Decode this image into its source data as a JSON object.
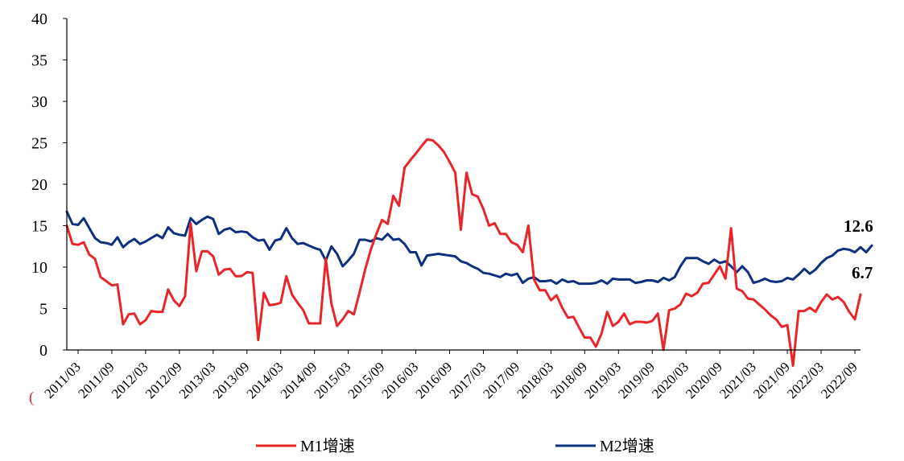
{
  "chart_data": {
    "type": "line",
    "title": "",
    "xlabel": "",
    "ylabel": "",
    "ylim": [
      0,
      40
    ],
    "yticks": [
      "0",
      "5",
      "10",
      "15",
      "20",
      "25",
      "30",
      "35",
      "40"
    ],
    "xticks": [
      "2011/03",
      "2011/09",
      "2012/03",
      "2012/09",
      "2013/03",
      "2013/09",
      "2014/03",
      "2014/09",
      "2015/03",
      "2015/09",
      "2016/03",
      "2016/09",
      "2017/03",
      "2017/09",
      "2018/03",
      "2018/09",
      "2019/03",
      "2019/09",
      "2020/03",
      "2020/09",
      "2021/03",
      "2021/09",
      "2022/03",
      "2022/09"
    ],
    "x_start": "2011/01",
    "x_end": "2022/12",
    "grid": false,
    "legend_position": "bottom",
    "stray_mark": "(",
    "series": [
      {
        "name": "M1增速",
        "color": "#e8262a",
        "end_label": "6.7",
        "values": [
          15.0,
          12.8,
          12.7,
          13.0,
          11.5,
          11.0,
          8.8,
          8.3,
          7.8,
          7.9,
          3.1,
          4.3,
          4.4,
          3.1,
          3.6,
          4.7,
          4.6,
          4.6,
          7.3,
          6.0,
          5.3,
          6.5,
          15.3,
          9.5,
          11.9,
          11.9,
          11.3,
          9.1,
          9.7,
          9.8,
          8.9,
          8.9,
          9.4,
          9.3,
          1.2,
          6.9,
          5.4,
          5.5,
          5.7,
          8.9,
          6.7,
          5.7,
          4.8,
          3.2,
          3.2,
          3.2,
          11.0,
          5.6,
          2.9,
          3.7,
          4.7,
          4.3,
          6.9,
          9.7,
          12.1,
          14.0,
          15.7,
          15.2,
          18.6,
          17.4,
          22.0,
          22.9,
          23.7,
          24.6,
          25.4,
          25.3,
          24.7,
          23.9,
          22.7,
          21.4,
          14.5,
          21.4,
          18.8,
          18.5,
          17.0,
          15.0,
          15.3,
          14.0,
          14.0,
          13.0,
          12.7,
          11.8,
          15.0,
          8.5,
          7.2,
          7.2,
          6.0,
          6.6,
          5.1,
          3.9,
          4.0,
          2.7,
          1.5,
          1.5,
          0.4,
          2.0,
          4.6,
          2.9,
          3.4,
          4.4,
          3.1,
          3.4,
          3.4,
          3.3,
          3.5,
          4.4,
          0.0,
          4.8,
          5.0,
          5.5,
          6.8,
          6.5,
          6.9,
          8.0,
          8.1,
          9.1,
          10.1,
          8.6,
          14.7,
          7.4,
          7.1,
          6.2,
          6.1,
          5.5,
          4.9,
          4.2,
          3.7,
          2.8,
          3.0,
          -1.9,
          4.7,
          4.7,
          5.1,
          4.6,
          5.8,
          6.7,
          6.1,
          6.4,
          5.8,
          4.6,
          3.7,
          6.7
        ]
      },
      {
        "name": "M2增速",
        "color": "#0f2f7f",
        "end_label": "12.6",
        "values": [
          16.7,
          15.2,
          15.1,
          15.9,
          14.7,
          13.5,
          13.0,
          12.9,
          12.7,
          13.6,
          12.4,
          13.0,
          13.4,
          12.8,
          13.1,
          13.5,
          13.9,
          13.5,
          14.8,
          14.1,
          13.9,
          13.8,
          15.9,
          15.2,
          15.7,
          16.1,
          15.8,
          14.0,
          14.5,
          14.7,
          14.2,
          14.3,
          14.2,
          13.6,
          13.2,
          13.3,
          12.1,
          13.2,
          13.4,
          14.7,
          13.5,
          12.8,
          12.9,
          12.6,
          12.3,
          12.1,
          10.8,
          12.5,
          11.6,
          10.1,
          10.8,
          11.6,
          13.3,
          13.3,
          13.1,
          13.5,
          13.3,
          14.0,
          13.3,
          13.4,
          12.8,
          11.8,
          11.8,
          10.2,
          11.4,
          11.5,
          11.6,
          11.5,
          11.4,
          11.3,
          10.7,
          10.5,
          10.1,
          9.8,
          9.3,
          9.2,
          9.0,
          8.8,
          9.2,
          9.0,
          9.2,
          8.1,
          8.6,
          8.8,
          8.3,
          8.3,
          8.4,
          8.0,
          8.5,
          8.2,
          8.3,
          8.0,
          8.0,
          8.0,
          8.1,
          8.4,
          8.0,
          8.6,
          8.5,
          8.5,
          8.5,
          8.1,
          8.2,
          8.4,
          8.4,
          8.2,
          8.7,
          8.4,
          8.8,
          10.1,
          11.1,
          11.1,
          11.1,
          10.7,
          10.4,
          10.9,
          10.5,
          10.7,
          10.1,
          9.4,
          10.1,
          9.4,
          8.1,
          8.3,
          8.6,
          8.3,
          8.2,
          8.3,
          8.7,
          8.5,
          9.1,
          9.8,
          9.2,
          9.7,
          10.5,
          11.1,
          11.4,
          12.0,
          12.2,
          12.1,
          11.8,
          12.4,
          11.8,
          12.6
        ]
      }
    ]
  }
}
